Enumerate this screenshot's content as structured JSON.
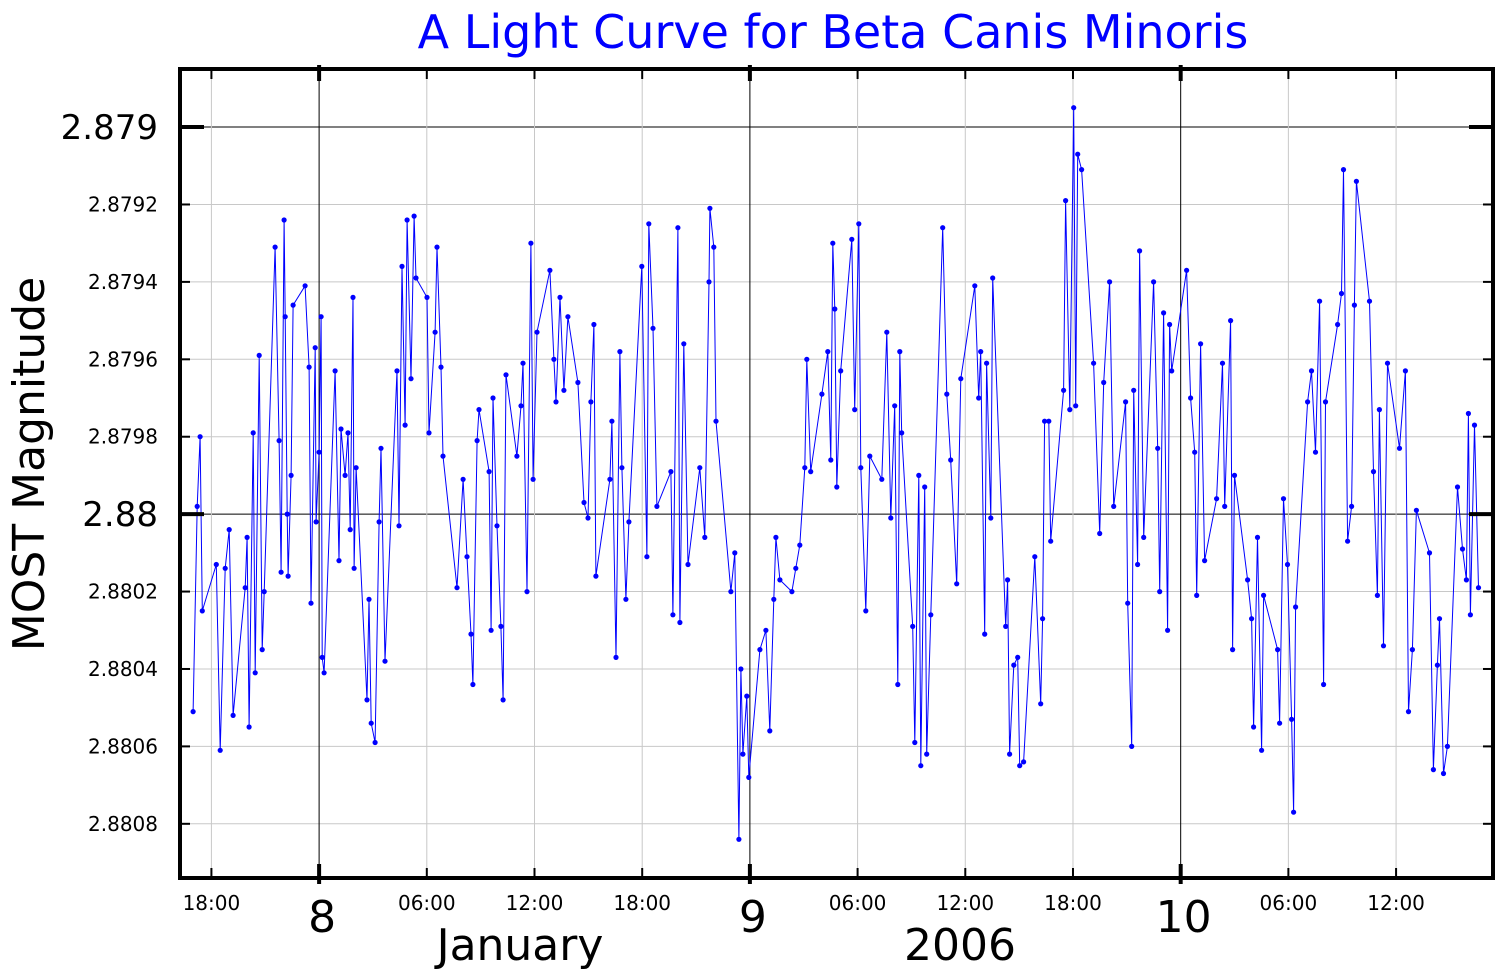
{
  "chart_data": {
    "type": "line",
    "title": "A Light Curve for Beta Canis Minoris",
    "ylabel": "MOST Magnitude",
    "xlabel": "January 2006",
    "x_units": "hours since 2006-01-08 00:00",
    "xlim": [
      -7.75,
      65.4
    ],
    "ylim": [
      2.88094,
      2.87885
    ],
    "y_inverted": true,
    "grid": true,
    "series_color": "#0000ff",
    "title_color": "#0000ff",
    "y_ticks": [
      {
        "value": 2.879,
        "label": "2.879",
        "major": true
      },
      {
        "value": 2.8792,
        "label": "2.8792",
        "major": false
      },
      {
        "value": 2.8794,
        "label": "2.8794",
        "major": false
      },
      {
        "value": 2.8796,
        "label": "2.8796",
        "major": false
      },
      {
        "value": 2.8798,
        "label": "2.8798",
        "major": false
      },
      {
        "value": 2.88,
        "label": "2.88",
        "major": true
      },
      {
        "value": 2.8802,
        "label": "2.8802",
        "major": false
      },
      {
        "value": 2.8804,
        "label": "2.8804",
        "major": false
      },
      {
        "value": 2.8806,
        "label": "2.8806",
        "major": false
      },
      {
        "value": 2.8808,
        "label": "2.8808",
        "major": false
      }
    ],
    "x_ticks_minor": [
      {
        "value": -6,
        "label": "18:00"
      },
      {
        "value": 6,
        "label": "06:00"
      },
      {
        "value": 12,
        "label": "12:00"
      },
      {
        "value": 18,
        "label": "18:00"
      },
      {
        "value": 30,
        "label": "06:00"
      },
      {
        "value": 36,
        "label": "12:00"
      },
      {
        "value": 42,
        "label": "18:00"
      },
      {
        "value": 54,
        "label": "06:00"
      },
      {
        "value": 60,
        "label": "12:00"
      }
    ],
    "x_ticks_major": [
      {
        "value": 0,
        "label": "8"
      },
      {
        "value": 24,
        "label": "9"
      },
      {
        "value": 48,
        "label": "10"
      }
    ],
    "x_month_label": "January",
    "x_year_label": "2006",
    "points": [
      [
        -7.02,
        2.88051
      ],
      [
        -6.79,
        2.87998
      ],
      [
        -6.63,
        2.8798
      ],
      [
        -6.51,
        2.88025
      ],
      [
        -5.73,
        2.88013
      ],
      [
        -5.51,
        2.88061
      ],
      [
        -5.23,
        2.88014
      ],
      [
        -5.01,
        2.88004
      ],
      [
        -4.79,
        2.88052
      ],
      [
        -4.12,
        2.88019
      ],
      [
        -4.01,
        2.88006
      ],
      [
        -3.9,
        2.88055
      ],
      [
        -3.67,
        2.87979
      ],
      [
        -3.56,
        2.88041
      ],
      [
        -3.34,
        2.87959
      ],
      [
        -3.17,
        2.88035
      ],
      [
        -3.06,
        2.8802
      ],
      [
        -2.45,
        2.87931
      ],
      [
        -2.23,
        2.87981
      ],
      [
        -2.12,
        2.88015
      ],
      [
        -1.95,
        2.87924
      ],
      [
        -1.89,
        2.87949
      ],
      [
        -1.78,
        2.88
      ],
      [
        -1.73,
        2.88016
      ],
      [
        -1.56,
        2.8799
      ],
      [
        -1.45,
        2.87946
      ],
      [
        -0.78,
        2.87941
      ],
      [
        -0.56,
        2.87962
      ],
      [
        -0.45,
        2.88023
      ],
      [
        -0.22,
        2.87957
      ],
      [
        -0.17,
        2.88002
      ],
      [
        0.0,
        2.87984
      ],
      [
        0.11,
        2.87949
      ],
      [
        0.17,
        2.88037
      ],
      [
        0.28,
        2.88041
      ],
      [
        0.89,
        2.87963
      ],
      [
        1.11,
        2.88012
      ],
      [
        1.22,
        2.87978
      ],
      [
        1.45,
        2.8799
      ],
      [
        1.61,
        2.87979
      ],
      [
        1.73,
        2.88004
      ],
      [
        1.89,
        2.87944
      ],
      [
        1.95,
        2.88014
      ],
      [
        2.06,
        2.87988
      ],
      [
        2.67,
        2.88048
      ],
      [
        2.78,
        2.88022
      ],
      [
        2.9,
        2.88054
      ],
      [
        3.12,
        2.88059
      ],
      [
        3.34,
        2.88002
      ],
      [
        3.45,
        2.87983
      ],
      [
        3.67,
        2.88038
      ],
      [
        4.34,
        2.87963
      ],
      [
        4.45,
        2.88003
      ],
      [
        4.62,
        2.87936
      ],
      [
        4.79,
        2.87977
      ],
      [
        4.9,
        2.87924
      ],
      [
        5.12,
        2.87965
      ],
      [
        5.29,
        2.87923
      ],
      [
        5.4,
        2.87939
      ],
      [
        6.01,
        2.87944
      ],
      [
        6.12,
        2.87979
      ],
      [
        6.46,
        2.87953
      ],
      [
        6.57,
        2.87931
      ],
      [
        6.79,
        2.87962
      ],
      [
        6.9,
        2.87985
      ],
      [
        7.68,
        2.88019
      ],
      [
        8.02,
        2.87991
      ],
      [
        8.24,
        2.88011
      ],
      [
        8.46,
        2.88031
      ],
      [
        8.57,
        2.88044
      ],
      [
        8.8,
        2.87981
      ],
      [
        8.91,
        2.87973
      ],
      [
        9.47,
        2.87989
      ],
      [
        9.58,
        2.8803
      ],
      [
        9.69,
        2.8797
      ],
      [
        9.91,
        2.88003
      ],
      [
        10.13,
        2.88029
      ],
      [
        10.25,
        2.88048
      ],
      [
        10.41,
        2.87964
      ],
      [
        11.02,
        2.87985
      ],
      [
        11.25,
        2.87972
      ],
      [
        11.36,
        2.87961
      ],
      [
        11.58,
        2.8802
      ],
      [
        11.8,
        2.8793
      ],
      [
        11.92,
        2.87991
      ],
      [
        12.14,
        2.87953
      ],
      [
        12.86,
        2.87937
      ],
      [
        13.08,
        2.8796
      ],
      [
        13.2,
        2.87971
      ],
      [
        13.42,
        2.87944
      ],
      [
        13.64,
        2.87968
      ],
      [
        13.86,
        2.87949
      ],
      [
        14.42,
        2.87966
      ],
      [
        14.76,
        2.87997
      ],
      [
        14.98,
        2.88001
      ],
      [
        15.14,
        2.87971
      ],
      [
        15.31,
        2.87951
      ],
      [
        15.42,
        2.88016
      ],
      [
        16.2,
        2.87991
      ],
      [
        16.31,
        2.87976
      ],
      [
        16.54,
        2.88037
      ],
      [
        16.76,
        2.87958
      ],
      [
        16.87,
        2.87988
      ],
      [
        17.09,
        2.88022
      ],
      [
        17.26,
        2.88002
      ],
      [
        17.98,
        2.87936
      ],
      [
        18.26,
        2.88011
      ],
      [
        18.37,
        2.87925
      ],
      [
        18.6,
        2.87952
      ],
      [
        18.82,
        2.87998
      ],
      [
        19.6,
        2.87989
      ],
      [
        19.71,
        2.88026
      ],
      [
        19.99,
        2.87926
      ],
      [
        20.1,
        2.88028
      ],
      [
        20.32,
        2.87956
      ],
      [
        20.55,
        2.88013
      ],
      [
        21.21,
        2.87988
      ],
      [
        21.49,
        2.88006
      ],
      [
        21.72,
        2.8794
      ],
      [
        21.77,
        2.87921
      ],
      [
        21.99,
        2.87931
      ],
      [
        22.11,
        2.87976
      ],
      [
        22.94,
        2.8802
      ],
      [
        23.16,
        2.8801
      ],
      [
        23.39,
        2.88084
      ],
      [
        23.5,
        2.8804
      ],
      [
        23.61,
        2.88062
      ],
      [
        23.83,
        2.88047
      ],
      [
        23.94,
        2.88068
      ],
      [
        24.56,
        2.88035
      ],
      [
        24.89,
        2.8803
      ],
      [
        25.11,
        2.88056
      ],
      [
        25.33,
        2.88022
      ],
      [
        25.45,
        2.88006
      ],
      [
        25.67,
        2.88017
      ],
      [
        26.34,
        2.8802
      ],
      [
        26.56,
        2.88014
      ],
      [
        26.78,
        2.88008
      ],
      [
        27.06,
        2.87988
      ],
      [
        27.17,
        2.8796
      ],
      [
        27.39,
        2.87989
      ],
      [
        28.01,
        2.87969
      ],
      [
        28.34,
        2.87958
      ],
      [
        28.51,
        2.87986
      ],
      [
        28.62,
        2.8793
      ],
      [
        28.73,
        2.87947
      ],
      [
        28.84,
        2.87993
      ],
      [
        29.06,
        2.87963
      ],
      [
        29.68,
        2.87929
      ],
      [
        29.84,
        2.87973
      ],
      [
        30.07,
        2.87925
      ],
      [
        30.18,
        2.87988
      ],
      [
        30.46,
        2.88025
      ],
      [
        30.68,
        2.87985
      ],
      [
        31.35,
        2.87991
      ],
      [
        31.63,
        2.87953
      ],
      [
        31.85,
        2.88001
      ],
      [
        32.07,
        2.87972
      ],
      [
        32.24,
        2.88044
      ],
      [
        32.35,
        2.87958
      ],
      [
        32.46,
        2.87979
      ],
      [
        33.07,
        2.88029
      ],
      [
        33.19,
        2.88059
      ],
      [
        33.41,
        2.8799
      ],
      [
        33.52,
        2.88065
      ],
      [
        33.74,
        2.87993
      ],
      [
        33.85,
        2.88062
      ],
      [
        34.08,
        2.88026
      ],
      [
        34.74,
        2.87926
      ],
      [
        34.97,
        2.87969
      ],
      [
        35.19,
        2.87986
      ],
      [
        35.52,
        2.88018
      ],
      [
        35.75,
        2.87965
      ],
      [
        36.53,
        2.87941
      ],
      [
        36.75,
        2.8797
      ],
      [
        36.86,
        2.87958
      ],
      [
        37.08,
        2.88031
      ],
      [
        37.19,
        2.87961
      ],
      [
        37.42,
        2.88001
      ],
      [
        37.53,
        2.87939
      ],
      [
        38.25,
        2.88029
      ],
      [
        38.36,
        2.88017
      ],
      [
        38.47,
        2.88062
      ],
      [
        38.7,
        2.88039
      ],
      [
        38.92,
        2.88037
      ],
      [
        39.03,
        2.88065
      ],
      [
        39.25,
        2.88064
      ],
      [
        39.87,
        2.88011
      ],
      [
        40.2,
        2.88049
      ],
      [
        40.31,
        2.88027
      ],
      [
        40.42,
        2.87976
      ],
      [
        40.65,
        2.87976
      ],
      [
        40.76,
        2.88007
      ],
      [
        41.48,
        2.87968
      ],
      [
        41.59,
        2.87919
      ],
      [
        41.82,
        2.87973
      ],
      [
        42.04,
        2.87895
      ],
      [
        42.15,
        2.87972
      ],
      [
        42.26,
        2.87907
      ],
      [
        42.48,
        2.87911
      ],
      [
        43.15,
        2.87961
      ],
      [
        43.49,
        2.88005
      ],
      [
        43.71,
        2.87966
      ],
      [
        44.04,
        2.8794
      ],
      [
        44.27,
        2.87998
      ],
      [
        44.93,
        2.87971
      ],
      [
        45.05,
        2.88023
      ],
      [
        45.27,
        2.8806
      ],
      [
        45.38,
        2.87968
      ],
      [
        45.6,
        2.88013
      ],
      [
        45.71,
        2.87932
      ],
      [
        45.94,
        2.88006
      ],
      [
        46.49,
        2.8794
      ],
      [
        46.72,
        2.87983
      ],
      [
        46.83,
        2.8802
      ],
      [
        47.05,
        2.87948
      ],
      [
        47.27,
        2.8803
      ],
      [
        47.38,
        2.87951
      ],
      [
        47.5,
        2.87963
      ],
      [
        48.33,
        2.87937
      ],
      [
        48.55,
        2.8797
      ],
      [
        48.78,
        2.87984
      ],
      [
        48.89,
        2.88021
      ],
      [
        49.11,
        2.87956
      ],
      [
        49.33,
        2.88012
      ],
      [
        50.0,
        2.87996
      ],
      [
        50.33,
        2.87961
      ],
      [
        50.45,
        2.87998
      ],
      [
        50.78,
        2.8795
      ],
      [
        50.89,
        2.88035
      ],
      [
        51.0,
        2.8799
      ],
      [
        51.73,
        2.88017
      ],
      [
        51.95,
        2.88027
      ],
      [
        52.06,
        2.88055
      ],
      [
        52.28,
        2.88006
      ],
      [
        52.51,
        2.88061
      ],
      [
        52.62,
        2.88021
      ],
      [
        53.4,
        2.88035
      ],
      [
        53.51,
        2.88054
      ],
      [
        53.73,
        2.87996
      ],
      [
        53.95,
        2.88013
      ],
      [
        54.18,
        2.88053
      ],
      [
        54.29,
        2.88077
      ],
      [
        54.4,
        2.88024
      ],
      [
        55.07,
        2.87971
      ],
      [
        55.29,
        2.87963
      ],
      [
        55.51,
        2.87984
      ],
      [
        55.74,
        2.87945
      ],
      [
        55.96,
        2.88044
      ],
      [
        56.07,
        2.87971
      ],
      [
        56.74,
        2.87951
      ],
      [
        56.96,
        2.87943
      ],
      [
        57.07,
        2.87911
      ],
      [
        57.3,
        2.88007
      ],
      [
        57.52,
        2.87998
      ],
      [
        57.68,
        2.87946
      ],
      [
        57.79,
        2.87914
      ],
      [
        58.52,
        2.87945
      ],
      [
        58.74,
        2.87989
      ],
      [
        58.96,
        2.88021
      ],
      [
        59.07,
        2.87973
      ],
      [
        59.3,
        2.88034
      ],
      [
        59.52,
        2.87961
      ],
      [
        60.19,
        2.87983
      ],
      [
        60.52,
        2.87963
      ],
      [
        60.69,
        2.88051
      ],
      [
        60.91,
        2.88035
      ],
      [
        61.13,
        2.87999
      ],
      [
        61.86,
        2.8801
      ],
      [
        62.08,
        2.88066
      ],
      [
        62.3,
        2.88039
      ],
      [
        62.42,
        2.88027
      ],
      [
        62.64,
        2.88067
      ],
      [
        62.86,
        2.8806
      ],
      [
        63.42,
        2.87993
      ],
      [
        63.7,
        2.88009
      ],
      [
        63.92,
        2.88017
      ],
      [
        64.03,
        2.87974
      ],
      [
        64.14,
        2.88026
      ],
      [
        64.37,
        2.87977
      ],
      [
        64.59,
        2.88019
      ]
    ]
  }
}
